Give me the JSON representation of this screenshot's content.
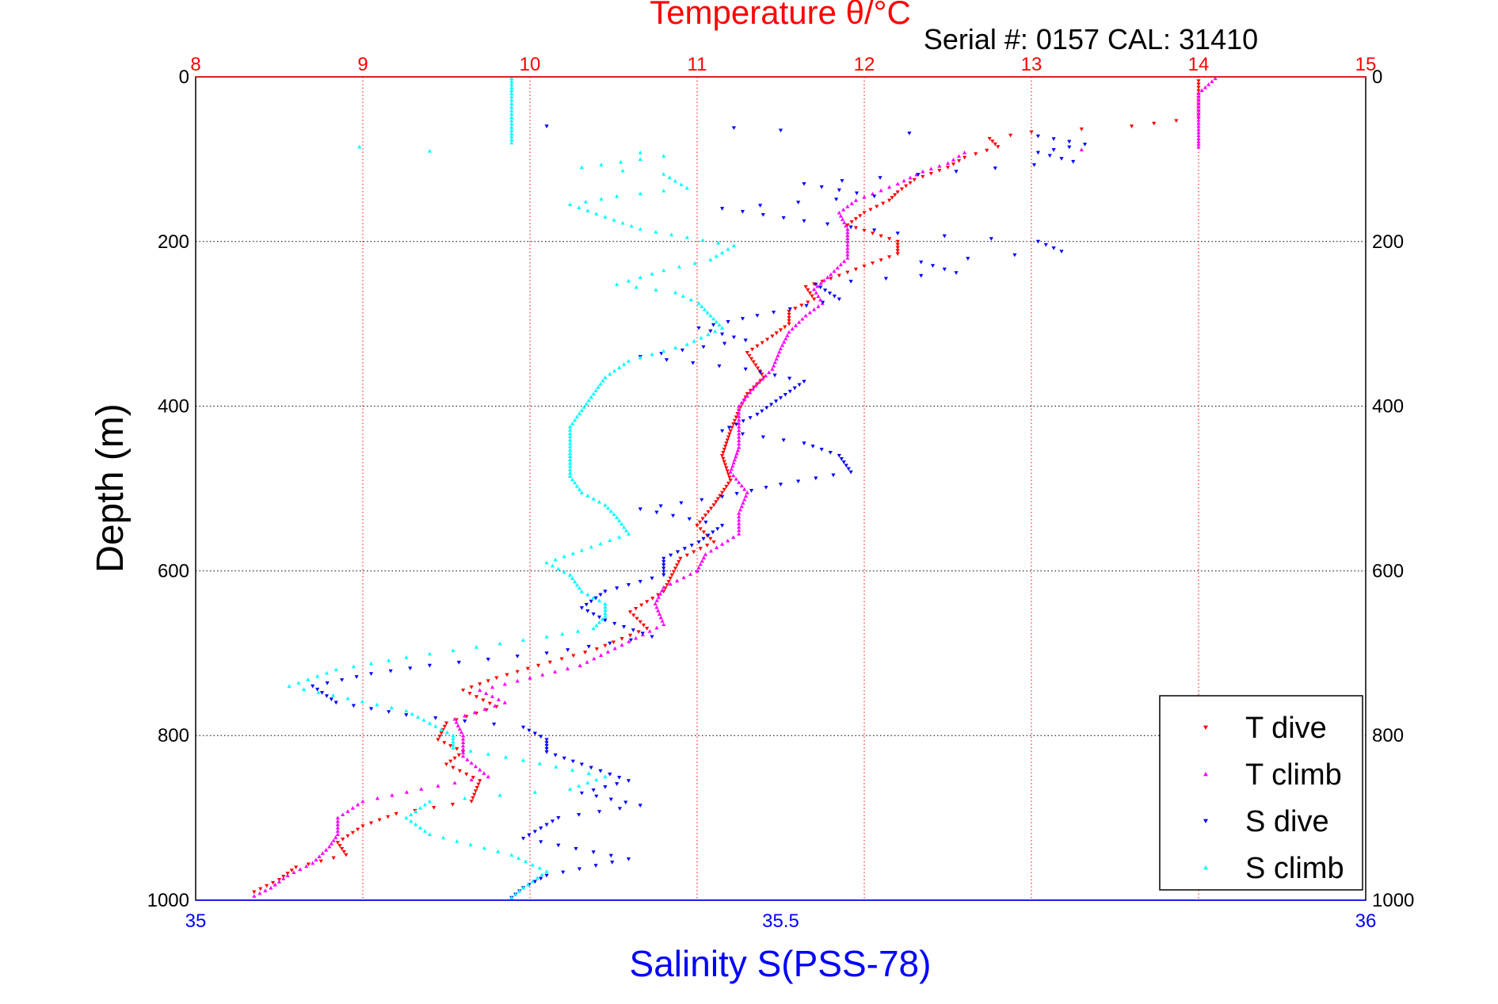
{
  "chart_data": {
    "type": "scatter",
    "title": "Temperature θ/°C",
    "subtitle": "Serial #: 0157  CAL: 31410",
    "ylabel": "Depth (m)",
    "xlabel": "Salinity S(PSS-78)",
    "depth_axis": {
      "range": [
        0,
        1000
      ],
      "reversed": true,
      "ticks": [
        0,
        200,
        400,
        600,
        800,
        1000
      ]
    },
    "temperature_axis": {
      "range": [
        8,
        15
      ],
      "ticks": [
        8,
        9,
        10,
        11,
        12,
        13,
        14,
        15
      ],
      "position": "top"
    },
    "salinity_axis": {
      "range": [
        35,
        36
      ],
      "ticks": [
        "35",
        "35.5",
        "36"
      ],
      "tick_values": [
        35,
        35.5,
        36
      ],
      "position": "bottom"
    },
    "grid": true,
    "legend_position": "bottom-right",
    "colors": {
      "temperature_axis": "#ff0000",
      "salinity_axis": "#0000ff",
      "grid": "#000000"
    },
    "series": [
      {
        "name": "T dive",
        "axis": "temperature",
        "color": "#ff0000",
        "marker": "triangle-down",
        "points": [
          [
            14.0,
            5
          ],
          [
            14.0,
            25
          ],
          [
            14.0,
            50
          ],
          [
            13.6,
            60
          ],
          [
            13.0,
            67
          ],
          [
            12.75,
            75
          ],
          [
            12.8,
            85
          ],
          [
            12.6,
            98
          ],
          [
            12.5,
            110
          ],
          [
            12.3,
            125
          ],
          [
            12.2,
            140
          ],
          [
            12.15,
            150
          ],
          [
            12.0,
            165
          ],
          [
            11.9,
            180
          ],
          [
            12.05,
            190
          ],
          [
            12.2,
            200
          ],
          [
            12.2,
            215
          ],
          [
            12.0,
            230
          ],
          [
            11.8,
            245
          ],
          [
            11.65,
            255
          ],
          [
            11.7,
            270
          ],
          [
            11.55,
            285
          ],
          [
            11.55,
            300
          ],
          [
            11.45,
            315
          ],
          [
            11.3,
            335
          ],
          [
            11.35,
            350
          ],
          [
            11.4,
            365
          ],
          [
            11.3,
            385
          ],
          [
            11.25,
            405
          ],
          [
            11.2,
            430
          ],
          [
            11.15,
            460
          ],
          [
            11.2,
            490
          ],
          [
            11.1,
            520
          ],
          [
            11.0,
            545
          ],
          [
            11.1,
            565
          ],
          [
            10.9,
            585
          ],
          [
            10.85,
            605
          ],
          [
            10.8,
            625
          ],
          [
            10.6,
            650
          ],
          [
            10.7,
            670
          ],
          [
            10.4,
            695
          ],
          [
            10.05,
            715
          ],
          [
            9.8,
            730
          ],
          [
            9.6,
            745
          ],
          [
            9.8,
            765
          ],
          [
            9.5,
            785
          ],
          [
            9.45,
            805
          ],
          [
            9.6,
            820
          ],
          [
            9.5,
            835
          ],
          [
            9.7,
            855
          ],
          [
            9.65,
            880
          ],
          [
            9.2,
            895
          ],
          [
            9.0,
            910
          ],
          [
            8.85,
            930
          ],
          [
            8.9,
            945
          ],
          [
            8.6,
            960
          ],
          [
            8.5,
            975
          ],
          [
            8.35,
            990
          ]
        ]
      },
      {
        "name": "T climb",
        "axis": "temperature",
        "color": "#ff00ff",
        "marker": "triangle-up",
        "points": [
          [
            14.1,
            2
          ],
          [
            14.0,
            20
          ],
          [
            14.0,
            45
          ],
          [
            14.0,
            60
          ],
          [
            14.0,
            75
          ],
          [
            14.0,
            85
          ],
          [
            12.6,
            92
          ],
          [
            12.5,
            105
          ],
          [
            12.35,
            115
          ],
          [
            12.2,
            130
          ],
          [
            11.95,
            150
          ],
          [
            11.85,
            165
          ],
          [
            11.9,
            185
          ],
          [
            11.9,
            200
          ],
          [
            11.9,
            220
          ],
          [
            11.8,
            240
          ],
          [
            11.7,
            258
          ],
          [
            11.75,
            275
          ],
          [
            11.65,
            290
          ],
          [
            11.55,
            310
          ],
          [
            11.5,
            330
          ],
          [
            11.45,
            355
          ],
          [
            11.35,
            375
          ],
          [
            11.25,
            400
          ],
          [
            11.25,
            425
          ],
          [
            11.25,
            450
          ],
          [
            11.2,
            480
          ],
          [
            11.3,
            505
          ],
          [
            11.25,
            530
          ],
          [
            11.25,
            555
          ],
          [
            11.05,
            580
          ],
          [
            11.0,
            600
          ],
          [
            10.8,
            620
          ],
          [
            10.75,
            640
          ],
          [
            10.8,
            665
          ],
          [
            10.55,
            690
          ],
          [
            10.3,
            715
          ],
          [
            10.0,
            730
          ],
          [
            9.7,
            745
          ],
          [
            9.85,
            760
          ],
          [
            9.55,
            780
          ],
          [
            9.6,
            800
          ],
          [
            9.6,
            825
          ],
          [
            9.75,
            850
          ],
          [
            9.35,
            865
          ],
          [
            9.0,
            880
          ],
          [
            8.85,
            900
          ],
          [
            8.85,
            920
          ],
          [
            8.8,
            935
          ],
          [
            8.7,
            955
          ],
          [
            8.55,
            970
          ],
          [
            8.45,
            985
          ],
          [
            8.35,
            995
          ]
        ]
      },
      {
        "name": "S dive",
        "axis": "salinity",
        "color": "#0000ff",
        "marker": "triangle-down",
        "points": [
          [
            35.3,
            60
          ],
          [
            35.46,
            62
          ],
          [
            35.5,
            65
          ],
          [
            35.72,
            72
          ],
          [
            35.76,
            82
          ],
          [
            35.72,
            92
          ],
          [
            35.75,
            103
          ],
          [
            35.65,
            115
          ],
          [
            35.52,
            130
          ],
          [
            35.58,
            145
          ],
          [
            35.45,
            160
          ],
          [
            35.52,
            175
          ],
          [
            35.6,
            190
          ],
          [
            35.72,
            200
          ],
          [
            35.74,
            212
          ],
          [
            35.62,
            225
          ],
          [
            35.65,
            238
          ],
          [
            35.53,
            252
          ],
          [
            35.55,
            270
          ],
          [
            35.48,
            290
          ],
          [
            35.43,
            305
          ],
          [
            35.47,
            320
          ],
          [
            35.38,
            340
          ],
          [
            35.47,
            355
          ],
          [
            35.52,
            370
          ],
          [
            35.5,
            390
          ],
          [
            35.48,
            410
          ],
          [
            35.45,
            430
          ],
          [
            35.52,
            445
          ],
          [
            35.55,
            460
          ],
          [
            35.56,
            480
          ],
          [
            35.5,
            495
          ],
          [
            35.45,
            510
          ],
          [
            35.38,
            525
          ],
          [
            35.45,
            545
          ],
          [
            35.43,
            565
          ],
          [
            35.4,
            585
          ],
          [
            35.4,
            605
          ],
          [
            35.35,
            625
          ],
          [
            35.33,
            645
          ],
          [
            35.35,
            660
          ],
          [
            35.39,
            680
          ],
          [
            35.3,
            700
          ],
          [
            35.2,
            715
          ],
          [
            35.15,
            725
          ],
          [
            35.1,
            740
          ],
          [
            35.12,
            760
          ],
          [
            35.18,
            775
          ],
          [
            35.28,
            790
          ],
          [
            35.3,
            805
          ],
          [
            35.3,
            820
          ],
          [
            35.33,
            835
          ],
          [
            35.37,
            855
          ],
          [
            35.33,
            870
          ],
          [
            35.38,
            885
          ],
          [
            35.31,
            900
          ],
          [
            35.28,
            925
          ],
          [
            35.37,
            950
          ],
          [
            35.3,
            970
          ],
          [
            35.28,
            985
          ],
          [
            35.27,
            997
          ]
        ]
      },
      {
        "name": "S climb",
        "axis": "salinity",
        "color": "#00ffff",
        "marker": "triangle-up",
        "points": [
          [
            35.27,
            2
          ],
          [
            35.27,
            20
          ],
          [
            35.27,
            45
          ],
          [
            35.27,
            65
          ],
          [
            35.27,
            80
          ],
          [
            35.14,
            85
          ],
          [
            35.2,
            90
          ],
          [
            35.38,
            92
          ],
          [
            35.4,
            96
          ],
          [
            35.38,
            100
          ],
          [
            35.33,
            110
          ],
          [
            35.4,
            118
          ],
          [
            35.42,
            135
          ],
          [
            35.36,
            145
          ],
          [
            35.32,
            155
          ],
          [
            35.35,
            170
          ],
          [
            35.38,
            185
          ],
          [
            35.42,
            195
          ],
          [
            35.46,
            205
          ],
          [
            35.44,
            222
          ],
          [
            35.4,
            235
          ],
          [
            35.36,
            252
          ],
          [
            35.41,
            262
          ],
          [
            35.43,
            275
          ],
          [
            35.44,
            290
          ],
          [
            35.45,
            305
          ],
          [
            35.42,
            325
          ],
          [
            35.37,
            345
          ],
          [
            35.35,
            365
          ],
          [
            35.34,
            385
          ],
          [
            35.33,
            405
          ],
          [
            35.32,
            425
          ],
          [
            35.32,
            445
          ],
          [
            35.32,
            465
          ],
          [
            35.32,
            485
          ],
          [
            35.33,
            505
          ],
          [
            35.35,
            520
          ],
          [
            35.36,
            535
          ],
          [
            35.37,
            555
          ],
          [
            35.33,
            575
          ],
          [
            35.3,
            590
          ],
          [
            35.32,
            605
          ],
          [
            35.33,
            625
          ],
          [
            35.35,
            640
          ],
          [
            35.35,
            655
          ],
          [
            35.34,
            670
          ],
          [
            35.3,
            680
          ],
          [
            35.18,
            705
          ],
          [
            35.12,
            720
          ],
          [
            35.08,
            740
          ],
          [
            35.13,
            755
          ],
          [
            35.18,
            770
          ],
          [
            35.2,
            785
          ],
          [
            35.22,
            800
          ],
          [
            35.22,
            815
          ],
          [
            35.28,
            830
          ],
          [
            35.35,
            850
          ],
          [
            35.32,
            865
          ],
          [
            35.2,
            880
          ],
          [
            35.18,
            900
          ],
          [
            35.2,
            920
          ],
          [
            35.27,
            945
          ],
          [
            35.3,
            965
          ],
          [
            35.28,
            985
          ],
          [
            35.27,
            997
          ]
        ]
      }
    ]
  }
}
